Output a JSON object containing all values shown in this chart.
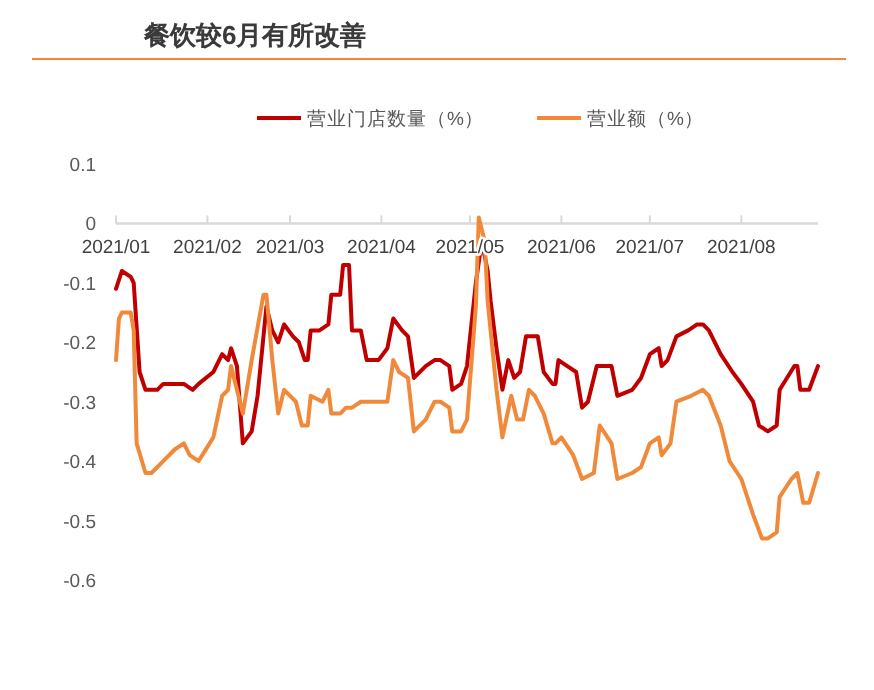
{
  "chart_data": {
    "type": "line",
    "title": "餐饮较6月有所改善",
    "legend": "top",
    "grid": false,
    "marker": "none",
    "line_style": "solid",
    "xlim": [
      "2021-01-01",
      "2021-08-27"
    ],
    "xticks": [
      {
        "value": "2021-01-01",
        "label": "2021/01"
      },
      {
        "value": "2021-02-01",
        "label": "2021/02"
      },
      {
        "value": "2021-03-01",
        "label": "2021/03"
      },
      {
        "value": "2021-04-01",
        "label": "2021/04"
      },
      {
        "value": "2021-05-01",
        "label": "2021/05"
      },
      {
        "value": "2021-06-01",
        "label": "2021/06"
      },
      {
        "value": "2021-07-01",
        "label": "2021/07"
      },
      {
        "value": "2021-08-01",
        "label": "2021/08"
      }
    ],
    "ylim": [
      -0.6,
      0.1
    ],
    "yticks": [
      0.1,
      0,
      -0.1,
      -0.2,
      -0.3,
      -0.4,
      -0.5,
      -0.6
    ],
    "series": [
      {
        "name": "营业门店数量（%）",
        "color": "#c00000",
        "x": [
          "2021-01-01",
          "2021-01-03",
          "2021-01-06",
          "2021-01-07",
          "2021-01-09",
          "2021-01-11",
          "2021-01-15",
          "2021-01-17",
          "2021-01-21",
          "2021-01-24",
          "2021-01-27",
          "2021-01-29",
          "2021-02-03",
          "2021-02-06",
          "2021-02-08",
          "2021-02-09",
          "2021-02-11",
          "2021-02-13",
          "2021-02-16",
          "2021-02-18",
          "2021-02-21",
          "2021-02-23",
          "2021-02-25",
          "2021-02-27",
          "2021-03-02",
          "2021-03-04",
          "2021-03-06",
          "2021-03-07",
          "2021-03-08",
          "2021-03-11",
          "2021-03-14",
          "2021-03-15",
          "2021-03-18",
          "2021-03-19",
          "2021-03-21",
          "2021-03-22",
          "2021-03-25",
          "2021-03-27",
          "2021-03-31",
          "2021-04-03",
          "2021-04-05",
          "2021-04-08",
          "2021-04-10",
          "2021-04-12",
          "2021-04-16",
          "2021-04-19",
          "2021-04-21",
          "2021-04-24",
          "2021-04-25",
          "2021-04-28",
          "2021-04-30",
          "2021-05-03",
          "2021-05-05",
          "2021-05-07",
          "2021-05-08",
          "2021-05-10",
          "2021-05-12",
          "2021-05-14",
          "2021-05-16",
          "2021-05-18",
          "2021-05-20",
          "2021-05-24",
          "2021-05-26",
          "2021-05-29",
          "2021-05-30",
          "2021-05-31",
          "2021-06-03",
          "2021-06-06",
          "2021-06-08",
          "2021-06-10",
          "2021-06-13",
          "2021-06-18",
          "2021-06-20",
          "2021-06-25",
          "2021-06-28",
          "2021-07-01",
          "2021-07-04",
          "2021-07-05",
          "2021-07-07",
          "2021-07-10",
          "2021-07-14",
          "2021-07-17",
          "2021-07-19",
          "2021-07-21",
          "2021-07-25",
          "2021-07-29",
          "2021-08-01",
          "2021-08-05",
          "2021-08-07",
          "2021-08-10",
          "2021-08-13",
          "2021-08-14",
          "2021-08-19",
          "2021-08-20",
          "2021-08-21",
          "2021-08-24",
          "2021-08-27"
        ],
        "values": [
          -0.11,
          -0.08,
          -0.09,
          -0.1,
          -0.25,
          -0.28,
          -0.28,
          -0.27,
          -0.27,
          -0.27,
          -0.28,
          -0.27,
          -0.25,
          -0.22,
          -0.23,
          -0.21,
          -0.24,
          -0.37,
          -0.35,
          -0.29,
          -0.14,
          -0.18,
          -0.2,
          -0.17,
          -0.19,
          -0.2,
          -0.23,
          -0.23,
          -0.18,
          -0.18,
          -0.17,
          -0.12,
          -0.12,
          -0.07,
          -0.07,
          -0.18,
          -0.18,
          -0.23,
          -0.23,
          -0.21,
          -0.16,
          -0.18,
          -0.19,
          -0.26,
          -0.24,
          -0.23,
          -0.23,
          -0.24,
          -0.28,
          -0.27,
          -0.24,
          -0.1,
          -0.03,
          -0.08,
          -0.13,
          -0.21,
          -0.28,
          -0.23,
          -0.26,
          -0.25,
          -0.19,
          -0.19,
          -0.25,
          -0.27,
          -0.27,
          -0.23,
          -0.24,
          -0.25,
          -0.31,
          -0.3,
          -0.24,
          -0.24,
          -0.29,
          -0.28,
          -0.26,
          -0.22,
          -0.21,
          -0.24,
          -0.23,
          -0.19,
          -0.18,
          -0.17,
          -0.17,
          -0.18,
          -0.22,
          -0.25,
          -0.27,
          -0.3,
          -0.34,
          -0.35,
          -0.34,
          -0.28,
          -0.24,
          -0.24,
          -0.28,
          -0.28,
          -0.24
        ]
      },
      {
        "name": "营业额（%）",
        "color": "#f08a3a",
        "x": [
          "2021-01-01",
          "2021-01-02",
          "2021-01-03",
          "2021-01-06",
          "2021-01-07",
          "2021-01-08",
          "2021-01-11",
          "2021-01-13",
          "2021-01-17",
          "2021-01-21",
          "2021-01-24",
          "2021-01-26",
          "2021-01-29",
          "2021-02-03",
          "2021-02-06",
          "2021-02-08",
          "2021-02-09",
          "2021-02-13",
          "2021-02-16",
          "2021-02-20",
          "2021-02-21",
          "2021-02-23",
          "2021-02-25",
          "2021-02-27",
          "2021-03-03",
          "2021-03-05",
          "2021-03-07",
          "2021-03-08",
          "2021-03-12",
          "2021-03-14",
          "2021-03-15",
          "2021-03-18",
          "2021-03-20",
          "2021-03-22",
          "2021-03-25",
          "2021-03-31",
          "2021-04-03",
          "2021-04-05",
          "2021-04-07",
          "2021-04-10",
          "2021-04-12",
          "2021-04-16",
          "2021-04-19",
          "2021-04-21",
          "2021-04-24",
          "2021-04-25",
          "2021-04-28",
          "2021-04-30",
          "2021-05-03",
          "2021-05-04",
          "2021-05-06",
          "2021-05-07",
          "2021-05-10",
          "2021-05-12",
          "2021-05-15",
          "2021-05-17",
          "2021-05-19",
          "2021-05-21",
          "2021-05-23",
          "2021-05-26",
          "2021-05-29",
          "2021-05-30",
          "2021-06-01",
          "2021-06-05",
          "2021-06-08",
          "2021-06-12",
          "2021-06-14",
          "2021-06-18",
          "2021-06-20",
          "2021-06-25",
          "2021-06-28",
          "2021-07-01",
          "2021-07-04",
          "2021-07-05",
          "2021-07-08",
          "2021-07-10",
          "2021-07-15",
          "2021-07-19",
          "2021-07-21",
          "2021-07-25",
          "2021-07-28",
          "2021-08-01",
          "2021-08-05",
          "2021-08-08",
          "2021-08-10",
          "2021-08-13",
          "2021-08-14",
          "2021-08-18",
          "2021-08-20",
          "2021-08-22",
          "2021-08-24",
          "2021-08-27"
        ],
        "values": [
          -0.23,
          -0.16,
          -0.15,
          -0.15,
          -0.18,
          -0.37,
          -0.42,
          -0.42,
          -0.4,
          -0.38,
          -0.37,
          -0.39,
          -0.4,
          -0.36,
          -0.29,
          -0.28,
          -0.24,
          -0.32,
          -0.23,
          -0.12,
          -0.12,
          -0.23,
          -0.32,
          -0.28,
          -0.3,
          -0.34,
          -0.34,
          -0.29,
          -0.3,
          -0.28,
          -0.32,
          -0.32,
          -0.31,
          -0.31,
          -0.3,
          -0.3,
          -0.3,
          -0.23,
          -0.25,
          -0.26,
          -0.35,
          -0.33,
          -0.3,
          -0.3,
          -0.31,
          -0.35,
          -0.35,
          -0.33,
          -0.14,
          0.01,
          -0.03,
          -0.13,
          -0.28,
          -0.36,
          -0.29,
          -0.33,
          -0.33,
          -0.28,
          -0.29,
          -0.32,
          -0.37,
          -0.37,
          -0.36,
          -0.39,
          -0.43,
          -0.42,
          -0.34,
          -0.37,
          -0.43,
          -0.42,
          -0.41,
          -0.37,
          -0.36,
          -0.39,
          -0.37,
          -0.3,
          -0.29,
          -0.28,
          -0.29,
          -0.34,
          -0.4,
          -0.43,
          -0.49,
          -0.53,
          -0.53,
          -0.52,
          -0.46,
          -0.43,
          -0.42,
          -0.47,
          -0.47,
          -0.42
        ]
      }
    ]
  }
}
